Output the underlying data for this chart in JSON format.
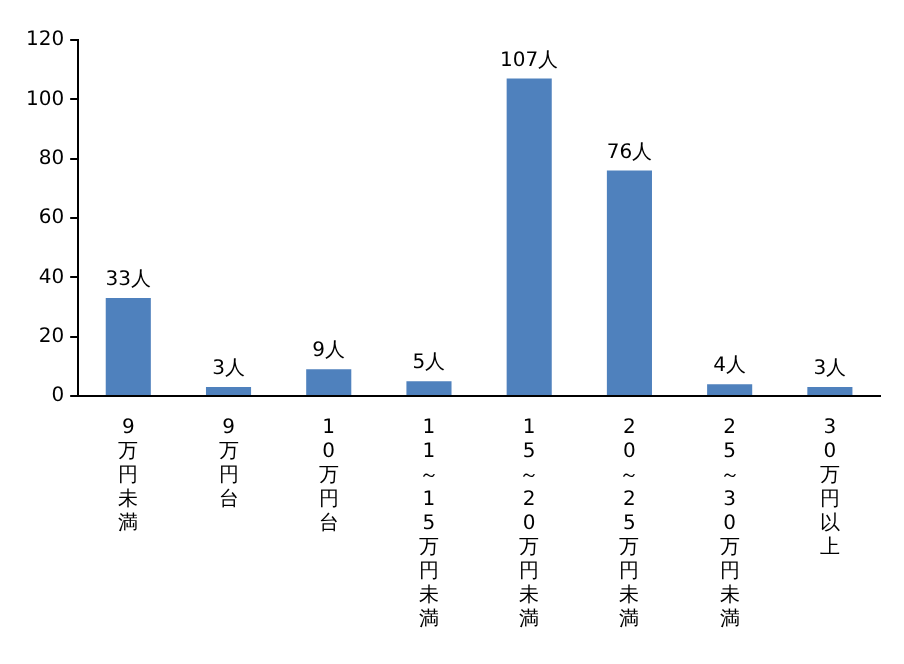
{
  "chart_data": {
    "type": "bar",
    "categories": [
      "9万円未満",
      "9万円台",
      "10万円台",
      "11～15万円未満",
      "15～20万円未満",
      "20～25万円未満",
      "25～30万円未満",
      "30万円以上"
    ],
    "values": [
      33,
      3,
      9,
      5,
      107,
      76,
      4,
      3
    ],
    "value_labels": [
      "33人",
      "3人",
      "9人",
      "5人",
      "107人",
      "76人",
      "4人",
      "3人"
    ],
    "color": "#4f81bd",
    "ylim": [
      0,
      120
    ],
    "yticks": [
      0,
      20,
      40,
      60,
      80,
      100,
      120
    ],
    "grid": false,
    "legend": false
  }
}
